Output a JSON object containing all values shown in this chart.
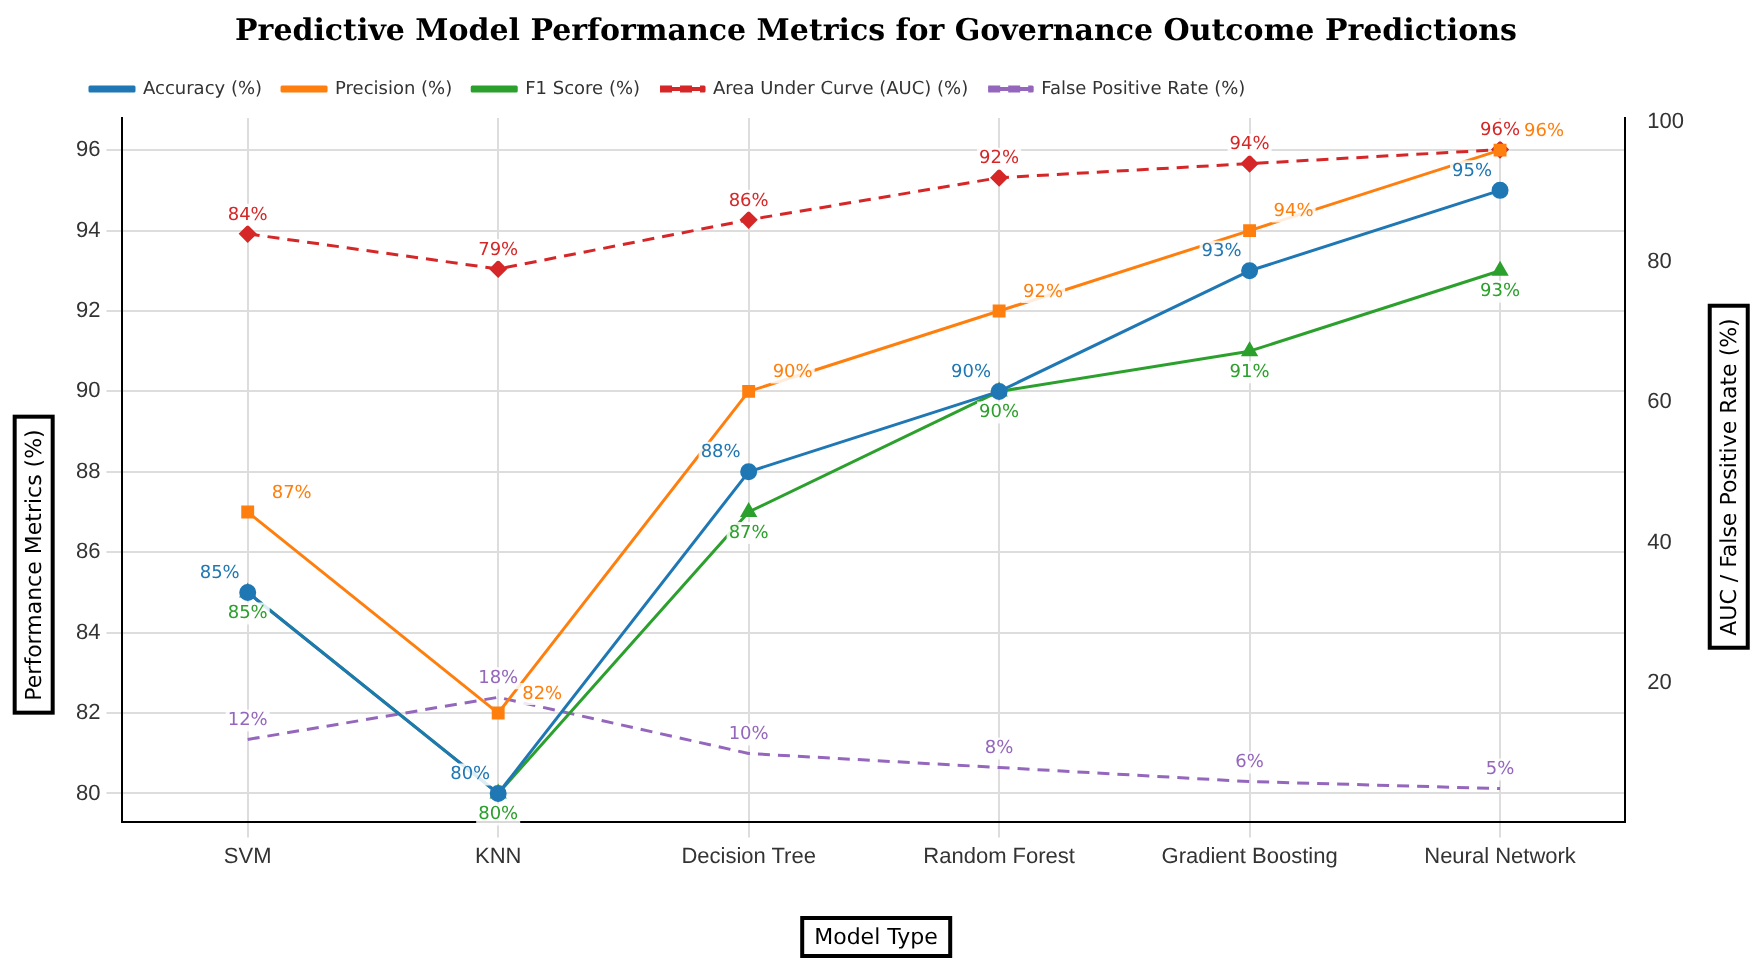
{
  "chart_data": {
    "type": "line",
    "title": "Predictive Model Performance Metrics for Governance Outcome Predictions",
    "xlabel": "Model Type",
    "ylabel": "Performance Metrics (%)",
    "y2label": "AUC / False Positive Rate (%)",
    "categories": [
      "SVM",
      "KNN",
      "Decision Tree",
      "Random Forest",
      "Gradient Boosting",
      "Neural Network"
    ],
    "series": [
      {
        "name": "Accuracy (%)",
        "color": "#1f77b4",
        "values": [
          85,
          80,
          88,
          90,
          93,
          95
        ],
        "marker": "circle",
        "line_style": "solid",
        "value_labels": [
          "85%",
          "80%",
          "88%",
          "90%",
          "93%",
          "95%"
        ]
      },
      {
        "name": "Precision (%)",
        "color": "#ff7f0e",
        "values": [
          87,
          82,
          90,
          92,
          94,
          96
        ],
        "marker": "square",
        "line_style": "solid",
        "value_labels": [
          "87%",
          "82%",
          "90%",
          "92%",
          "94%",
          "96%"
        ]
      },
      {
        "name": "F1 Score (%)",
        "color": "#2ca02c",
        "values": [
          85,
          80,
          87,
          90,
          91,
          93
        ],
        "marker": "triangle",
        "line_style": "solid",
        "value_labels": [
          "85%",
          "80%",
          "87%",
          "90%",
          "91%",
          "93%"
        ]
      },
      {
        "name": "Area Under Curve (AUC) (%)",
        "color": "#d62728",
        "values": [
          84,
          79,
          86,
          92,
          94,
          96
        ],
        "axis": "y2",
        "marker": "diamond",
        "line_style": "dashed",
        "value_labels": [
          "84%",
          "79%",
          "86%",
          "92%",
          "94%",
          "96%"
        ]
      },
      {
        "name": "False Positive Rate (%)",
        "color": "#9467bd",
        "values": [
          12,
          18,
          10,
          8,
          6,
          5
        ],
        "axis": "y2",
        "marker": "none",
        "line_style": "dashed",
        "value_labels": [
          "12%",
          "18%",
          "10%",
          "8%",
          "6%",
          "5%"
        ]
      }
    ],
    "ylim": [
      79.3,
      96.8
    ],
    "yticks": [
      80,
      82,
      84,
      86,
      88,
      90,
      92,
      94,
      96
    ],
    "y2lim": [
      0.3,
      100.5
    ],
    "y2ticks": [
      20,
      40,
      60,
      80,
      100
    ],
    "grid": true,
    "legend": "top left"
  }
}
